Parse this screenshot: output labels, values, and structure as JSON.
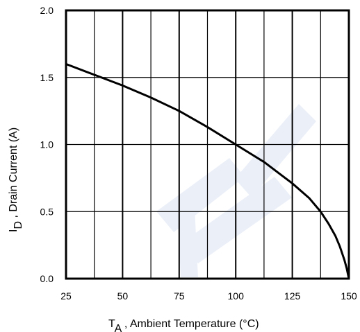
{
  "chart_data": {
    "type": "line",
    "title": "",
    "xlabel": {
      "main": "T",
      "sub": "A",
      "rest": ", Ambient Temperature (°C)"
    },
    "ylabel": {
      "main": "I",
      "sub": "D",
      "rest": ", Drain Current (A)"
    },
    "xlim": [
      25,
      150
    ],
    "ylim": [
      0,
      2.0
    ],
    "x_ticks": [
      "25",
      "50",
      "75",
      "100",
      "125",
      "150"
    ],
    "x_tick_values": [
      25,
      50,
      75,
      100,
      125,
      150
    ],
    "y_ticks": [
      "0.0",
      "0.5",
      "1.0",
      "1.5",
      "2.0"
    ],
    "y_tick_values": [
      0,
      0.5,
      1.0,
      1.5,
      2.0
    ],
    "grid": true,
    "x_minor_gridlines": [
      37.5,
      62.5,
      87.5,
      112.5,
      137.5
    ],
    "series": [
      {
        "name": "",
        "x": [
          25,
          37.5,
          50,
          62.5,
          75,
          87.5,
          100,
          112.5,
          125,
          132.5,
          137.5,
          141,
          144,
          146,
          148,
          149,
          150
        ],
        "y": [
          1.6,
          1.52,
          1.44,
          1.35,
          1.25,
          1.13,
          1.0,
          0.87,
          0.71,
          0.6,
          0.5,
          0.41,
          0.32,
          0.24,
          0.14,
          0.08,
          0.0
        ]
      }
    ]
  }
}
